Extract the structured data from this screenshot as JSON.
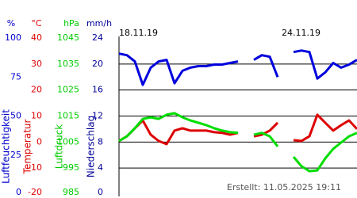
{
  "chart_data": {
    "type": "line",
    "axes": [
      {
        "unit": "%",
        "label": "Luftfeuchtigkeit",
        "color": "#0000cc",
        "ylim": [
          0,
          100
        ],
        "yticks": [
          0,
          25,
          50,
          75,
          100
        ]
      },
      {
        "unit": "°C",
        "label": "Temperatur",
        "color": "#dd0000",
        "ylim": [
          -20,
          40
        ],
        "yticks": [
          -20,
          -10,
          0,
          10,
          20,
          30,
          40
        ]
      },
      {
        "unit": "hPa",
        "label": "Luftdruck",
        "color": "#00cc00",
        "ylim": [
          985,
          1045
        ],
        "yticks": [
          985,
          995,
          1005,
          1015,
          1025,
          1035,
          1045
        ]
      },
      {
        "unit": "mm/h",
        "label": "Niederschlag",
        "color": "#000099",
        "ylim": [
          0,
          24
        ],
        "yticks": [
          0,
          4,
          8,
          12,
          16,
          20,
          24
        ]
      }
    ],
    "categories": [
      "18.11.19",
      null,
      null,
      null,
      null,
      null,
      null,
      null,
      null,
      null,
      null,
      null,
      null,
      null,
      null,
      null,
      null,
      null,
      null,
      null,
      null,
      null,
      null,
      null,
      null,
      "24.11.19",
      null,
      null,
      null,
      null,
      null
    ],
    "series": [
      {
        "name": "Luftfeuchtigkeit",
        "axis": 0,
        "color": "#0000dd",
        "values": [
          90,
          89,
          85,
          70,
          81,
          85,
          86,
          71,
          79,
          81,
          82,
          82,
          83,
          83,
          84,
          85,
          null,
          86,
          89,
          88,
          75,
          null,
          91,
          92,
          91,
          74,
          78,
          84,
          81,
          83,
          86
        ]
      },
      {
        "name": "Temperatur",
        "axis": 1,
        "color": "#dd0000",
        "values": [
          0.4,
          2.2,
          5.3,
          8.3,
          2.8,
          0.4,
          -0.8,
          4.4,
          5.3,
          4.4,
          4.4,
          4.4,
          3.8,
          3.5,
          2.8,
          3.5,
          null,
          2.2,
          2.8,
          4.4,
          7.4,
          null,
          0.7,
          0.4,
          2.2,
          10.5,
          7.4,
          4.4,
          6.5,
          8.3,
          5
        ]
      },
      {
        "name": "Luftdruck",
        "axis": 2,
        "color": "#00dd00",
        "values": [
          1005.4,
          1007.2,
          1010.3,
          1013.9,
          1014.5,
          1013.9,
          1015.5,
          1016.1,
          1014.5,
          1013.3,
          1012.4,
          1011.5,
          1010.3,
          1009.4,
          1008.8,
          1008.5,
          null,
          1007.8,
          1008.5,
          1007.2,
          1003.3,
          null,
          999.3,
          995.7,
          993.8,
          994.1,
          998.7,
          1002.4,
          1004.8,
          1007.2,
          1008.5
        ]
      }
    ],
    "grid": true,
    "footer": "Erstellt: 11.05.2025 19:11"
  }
}
